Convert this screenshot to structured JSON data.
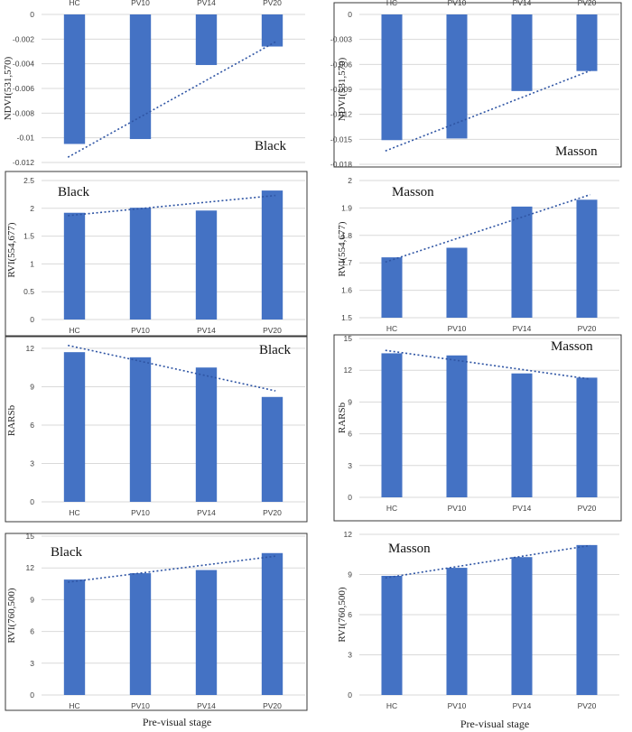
{
  "figure": {
    "xlabels": [
      "Pre-visual stage",
      "Pre-visual stage"
    ]
  },
  "colors": {
    "bar": "#4472c4",
    "trend": "#2f55a4",
    "grid": "#d9d9d9"
  },
  "chart_data": [
    {
      "type": "bar",
      "label": "Black",
      "ylabel": "NDVI(531,570)",
      "categories": [
        "HC",
        "PV10",
        "PV14",
        "PV20"
      ],
      "values": [
        -0.0105,
        -0.0101,
        -0.0041,
        -0.0026
      ],
      "ylim": [
        -0.012,
        0
      ],
      "yticks": [
        0,
        -0.002,
        -0.004,
        -0.006,
        -0.008,
        -0.01,
        -0.012
      ],
      "ytick_labels": [
        "0",
        "-0.002",
        "-0.004",
        "-0.006",
        "-0.008",
        "-0.01",
        "-0.012"
      ],
      "trendline": "linear",
      "cat_position": "top",
      "legend_text_position": "bottom-right",
      "frame": false
    },
    {
      "type": "bar",
      "label": "Masson",
      "ylabel": "NDVI(531,570)",
      "categories": [
        "HC",
        "PV10",
        "PV14",
        "PV20"
      ],
      "values": [
        -0.0151,
        -0.0149,
        -0.0092,
        -0.0068
      ],
      "ylim": [
        -0.018,
        0
      ],
      "yticks": [
        0,
        -0.003,
        -0.006,
        -0.009,
        -0.012,
        -0.015,
        -0.018
      ],
      "ytick_labels": [
        "0",
        "-0.003",
        "-0.006",
        "-0.009",
        "-0.012",
        "-0.015",
        "-0.018"
      ],
      "trendline": "linear",
      "cat_position": "top",
      "legend_text_position": "bottom-right",
      "frame": true
    },
    {
      "type": "bar",
      "label": "Black",
      "ylabel": "RVI(554,677)",
      "categories": [
        "HC",
        "PV10",
        "PV14",
        "PV20"
      ],
      "values": [
        1.92,
        2.01,
        1.96,
        2.32
      ],
      "ylim": [
        0,
        2.5
      ],
      "yticks": [
        0,
        0.5,
        1,
        1.5,
        2,
        2.5
      ],
      "ytick_labels": [
        "0",
        "0.5",
        "1",
        "1.5",
        "2",
        "2.5"
      ],
      "trendline": "linear",
      "cat_position": "bottom",
      "legend_text_position": "top-left",
      "frame": true
    },
    {
      "type": "bar",
      "label": "Masson",
      "ylabel": "RVI(554,677)",
      "categories": [
        "HC",
        "PV10",
        "PV14",
        "PV20"
      ],
      "values": [
        1.72,
        1.755,
        1.905,
        1.93
      ],
      "ylim": [
        1.5,
        2
      ],
      "yticks": [
        1.5,
        1.6,
        1.7,
        1.8,
        1.9,
        2
      ],
      "ytick_labels": [
        "1.5",
        "1.6",
        "1.7",
        "1.8",
        "1.9",
        "2"
      ],
      "trendline": "linear",
      "cat_position": "bottom",
      "legend_text_position": "top-left",
      "frame": false
    },
    {
      "type": "bar",
      "label": "Black",
      "ylabel": "RARSb",
      "categories": [
        "HC",
        "PV10",
        "PV14",
        "PV20"
      ],
      "values": [
        11.7,
        11.3,
        10.5,
        8.2
      ],
      "ylim": [
        0,
        12.7
      ],
      "yticks": [
        0,
        3,
        6,
        9,
        12
      ],
      "ytick_labels": [
        "0",
        "3",
        "6",
        "9",
        "12"
      ],
      "trendline": "linear",
      "cat_position": "bottom",
      "legend_text_position": "top-right",
      "frame": true
    },
    {
      "type": "bar",
      "label": "Masson",
      "ylabel": "RARSb",
      "categories": [
        "HC",
        "PV10",
        "PV14",
        "PV20"
      ],
      "values": [
        13.6,
        13.4,
        11.7,
        11.3
      ],
      "ylim": [
        0,
        15
      ],
      "yticks": [
        0,
        3,
        6,
        9,
        12,
        15
      ],
      "ytick_labels": [
        "0",
        "3",
        "6",
        "9",
        "12",
        "15"
      ],
      "trendline": "linear",
      "cat_position": "bottom",
      "legend_text_position": "top-right",
      "frame": true
    },
    {
      "type": "bar",
      "label": "Black",
      "ylabel": "RVI(760,500)",
      "categories": [
        "HC",
        "PV10",
        "PV14",
        "PV20"
      ],
      "values": [
        10.9,
        11.5,
        11.8,
        13.4
      ],
      "ylim": [
        0,
        15
      ],
      "yticks": [
        0,
        3,
        6,
        9,
        12,
        15
      ],
      "ytick_labels": [
        "0",
        "3",
        "6",
        "9",
        "12",
        "15"
      ],
      "trendline": "linear",
      "cat_position": "bottom",
      "legend_text_position": "top-left",
      "frame": true
    },
    {
      "type": "bar",
      "label": "Masson",
      "ylabel": "RVI(760,500)",
      "categories": [
        "HC",
        "PV10",
        "PV14",
        "PV20"
      ],
      "values": [
        8.9,
        9.5,
        10.3,
        11.2
      ],
      "ylim": [
        0,
        12
      ],
      "yticks": [
        0,
        3,
        6,
        9,
        12
      ],
      "ytick_labels": [
        "0",
        "3",
        "6",
        "9",
        "12"
      ],
      "trendline": "linear",
      "cat_position": "bottom",
      "legend_text_position": "top-left",
      "frame": false
    }
  ]
}
